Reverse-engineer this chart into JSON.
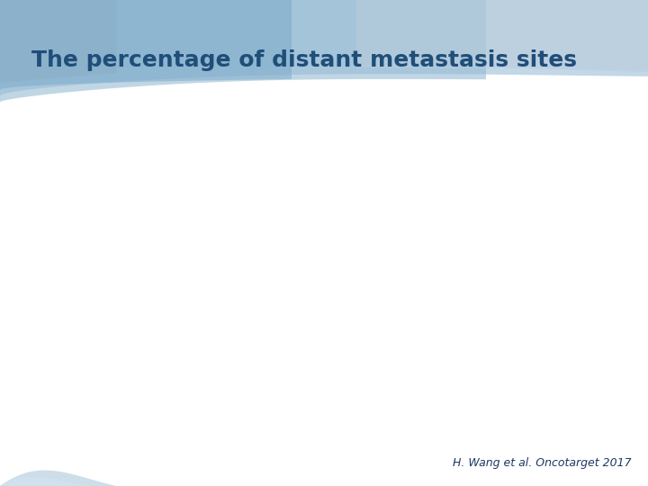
{
  "title": "The percentage of distant metastasis sites",
  "title_color": "#1f4e79",
  "title_fontsize": 18,
  "citation": "H. Wang et al. Oncotarget 2017",
  "citation_color": "#1f3864",
  "citation_fontsize": 9,
  "bg_color": "#ffffff"
}
